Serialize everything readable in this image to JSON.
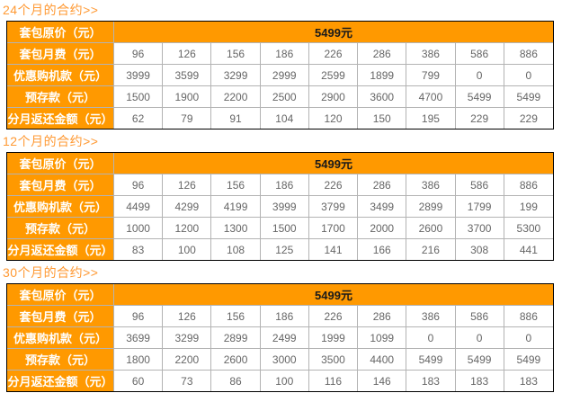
{
  "page": {
    "accent_orange": "#ff9900",
    "title_orange": "#ff9933",
    "outer_border": "#000000",
    "inner_border": "#b3b3b3",
    "currency_unit": "元"
  },
  "sections": [
    {
      "title": "24个月的合约>>",
      "rows": [
        {
          "label": "套包原价（元）",
          "merged": true,
          "value": "5499元"
        },
        {
          "label": "套包月费（元）",
          "values": [
            96,
            126,
            156,
            186,
            226,
            286,
            386,
            586,
            886
          ]
        },
        {
          "label": "优惠购机款（元）",
          "values": [
            3999,
            3599,
            3299,
            2999,
            2599,
            1899,
            799,
            0,
            0
          ]
        },
        {
          "label": "预存款（元）",
          "values": [
            1500,
            1900,
            2200,
            2500,
            2900,
            3600,
            4700,
            5499,
            5499
          ]
        },
        {
          "label": "分月返还金额（元）",
          "values": [
            62,
            79,
            91,
            104,
            120,
            150,
            195,
            229,
            229
          ]
        }
      ]
    },
    {
      "title": "12个月的合约>>",
      "rows": [
        {
          "label": "套包原价（元）",
          "merged": true,
          "value": "5499元"
        },
        {
          "label": "套包月费（元）",
          "values": [
            96,
            126,
            156,
            186,
            226,
            286,
            386,
            586,
            886
          ]
        },
        {
          "label": "优惠购机款（元）",
          "values": [
            4499,
            4299,
            4199,
            3999,
            3799,
            3499,
            2899,
            1799,
            199
          ]
        },
        {
          "label": "预存款（元）",
          "values": [
            1000,
            1200,
            1300,
            1500,
            1700,
            2000,
            2600,
            3700,
            5300
          ]
        },
        {
          "label": "分月返还金额（元）",
          "values": [
            83,
            100,
            108,
            125,
            141,
            166,
            216,
            308,
            441
          ]
        }
      ]
    },
    {
      "title": "30个月的合约>>",
      "rows": [
        {
          "label": "套包原价（元）",
          "merged": true,
          "value": "5499元"
        },
        {
          "label": "套包月费（元）",
          "values": [
            96,
            126,
            156,
            186,
            226,
            286,
            386,
            586,
            886
          ]
        },
        {
          "label": "优惠购机款（元）",
          "values": [
            3699,
            3299,
            2899,
            2499,
            1999,
            1099,
            0,
            0,
            0
          ]
        },
        {
          "label": "预存款（元）",
          "values": [
            1800,
            2200,
            2600,
            3000,
            3500,
            4400,
            5499,
            5499,
            5499
          ]
        },
        {
          "label": "分月返还金额（元）",
          "values": [
            60,
            73,
            86,
            100,
            116,
            146,
            183,
            183,
            183
          ]
        }
      ]
    }
  ]
}
